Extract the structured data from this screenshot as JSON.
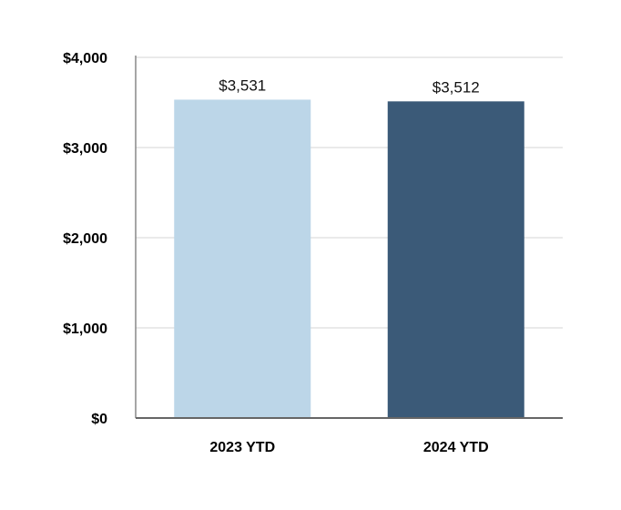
{
  "chart_data": {
    "type": "bar",
    "categories": [
      "2023 YTD",
      "2024 YTD"
    ],
    "values": [
      3531,
      3512
    ],
    "data_labels": [
      "$3,531",
      "$3,512"
    ],
    "colors": [
      "#bcd6e8",
      "#3b5a78"
    ],
    "title": "",
    "xlabel": "",
    "ylabel": "",
    "ylim": [
      0,
      4000
    ],
    "yticks": [
      0,
      1000,
      2000,
      3000,
      4000
    ],
    "ytick_labels": [
      "$0",
      "$1,000",
      "$2,000",
      "$3,000",
      "$4,000"
    ],
    "grid": true,
    "legend": "none"
  }
}
